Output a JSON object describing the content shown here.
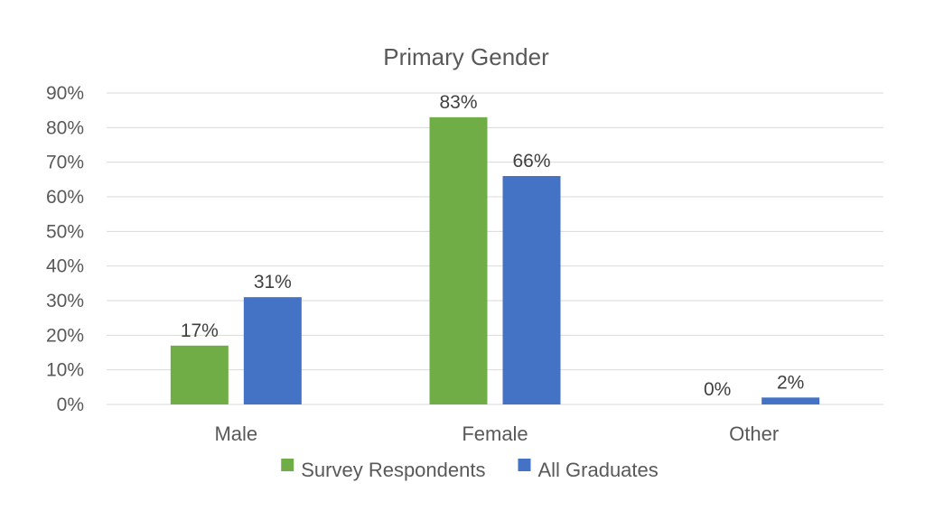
{
  "chart_data": {
    "type": "bar",
    "title": "Primary Gender",
    "categories": [
      "Male",
      "Female",
      "Other"
    ],
    "series": [
      {
        "name": "Survey Respondents",
        "color": "#70ad47",
        "values": [
          17,
          83,
          0
        ],
        "labels": [
          "17%",
          "83%",
          "0%"
        ]
      },
      {
        "name": "All Graduates",
        "color": "#4472c4",
        "values": [
          31,
          66,
          2
        ],
        "labels": [
          "31%",
          "66%",
          "2%"
        ]
      }
    ],
    "ylim": [
      0,
      90
    ],
    "yticks": [
      0,
      10,
      20,
      30,
      40,
      50,
      60,
      70,
      80,
      90
    ],
    "ytick_labels": [
      "0%",
      "10%",
      "20%",
      "30%",
      "40%",
      "50%",
      "60%",
      "70%",
      "80%",
      "90%"
    ],
    "xlabel": "",
    "ylabel": "",
    "grid": true,
    "legend_position": "bottom"
  }
}
